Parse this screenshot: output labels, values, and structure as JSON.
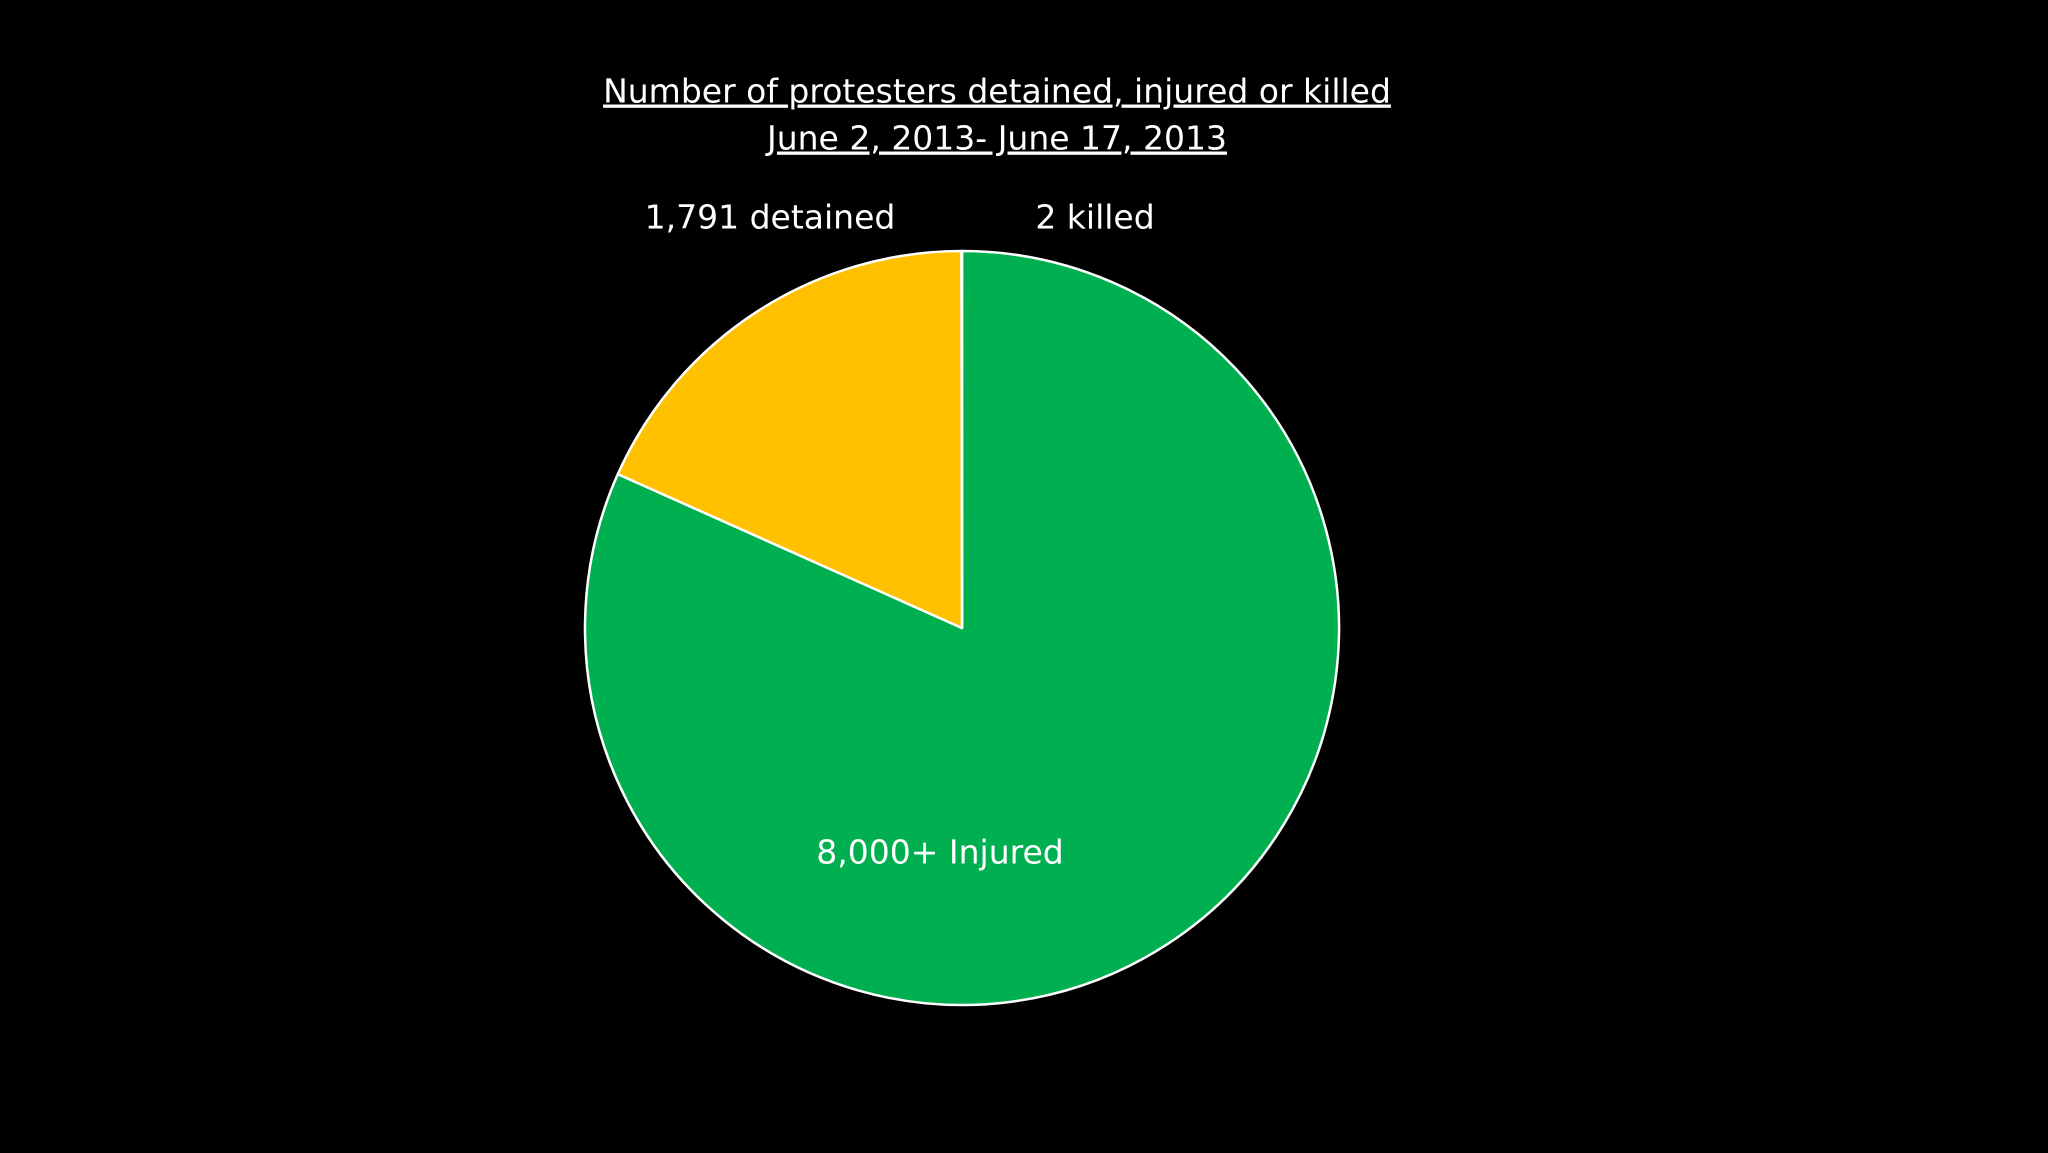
{
  "chart_data": {
    "type": "pie",
    "title": "Number of protesters detained, injured or killed",
    "subtitle": "June 2, 2013- June 17, 2013",
    "values": [
      8000,
      1791,
      2
    ],
    "value_labels": [
      "8,000+ Injured",
      "1,791 detained",
      "2 killed"
    ],
    "colors": [
      "#00b050",
      "#ffc000",
      "#c00000"
    ]
  }
}
